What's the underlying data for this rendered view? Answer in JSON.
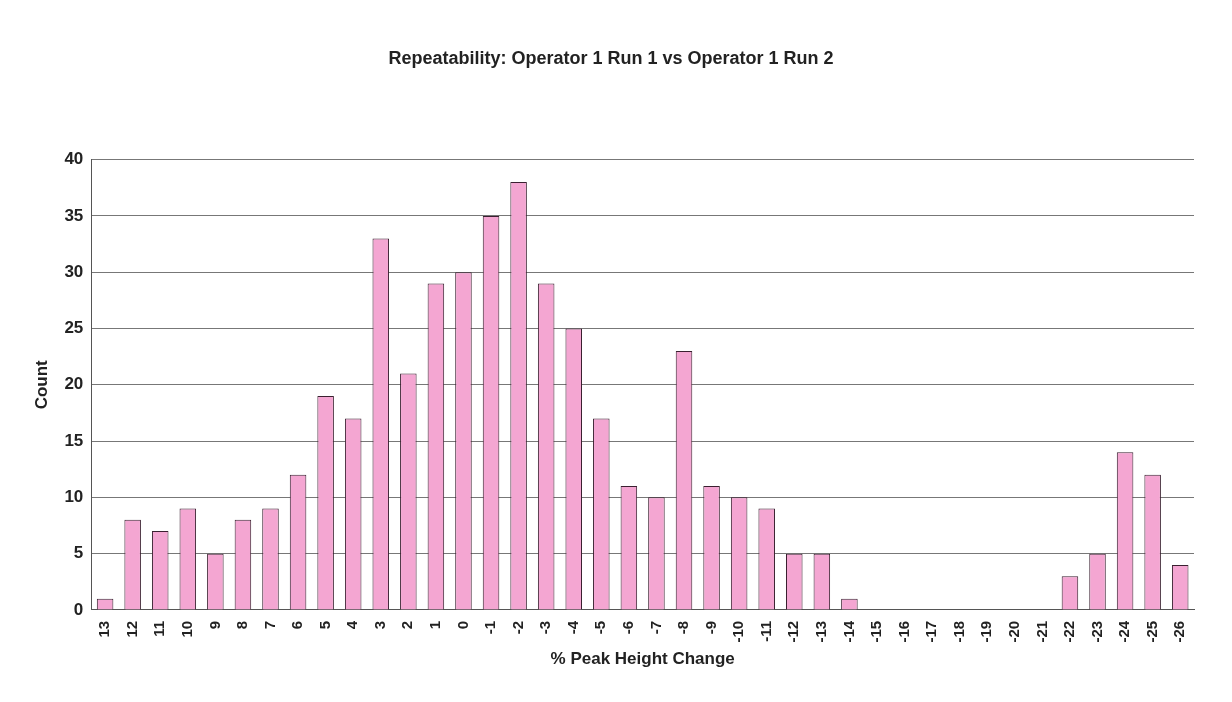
{
  "chart_data": {
    "type": "bar",
    "title": "Repeatability: Operator 1 Run 1 vs Operator 1 Run 2",
    "xlabel": "% Peak Height Change",
    "ylabel": "Count",
    "categories": [
      "13",
      "12",
      "11",
      "10",
      "9",
      "8",
      "7",
      "6",
      "5",
      "4",
      "3",
      "2",
      "1",
      "0",
      "-1",
      "-2",
      "-3",
      "-4",
      "-5",
      "-6",
      "-7",
      "-8",
      "-9",
      "-10",
      "-11",
      "-12",
      "-13",
      "-14",
      "-15",
      "-16",
      "-17",
      "-18",
      "-19",
      "-20",
      "-21",
      "-22",
      "-23",
      "-24",
      "-25",
      "-26"
    ],
    "values": [
      1,
      8,
      7,
      9,
      5,
      8,
      9,
      12,
      19,
      17,
      33,
      21,
      29,
      30,
      35,
      38,
      29,
      25,
      17,
      11,
      10,
      23,
      11,
      10,
      9,
      5,
      5,
      1,
      0,
      0,
      0,
      0,
      0,
      0,
      0,
      3,
      5,
      14,
      12,
      4
    ],
    "color": "#f4a6d2",
    "ylim": [
      0,
      40
    ],
    "yticks": [
      0,
      5,
      10,
      15,
      20,
      25,
      30,
      35,
      40
    ],
    "grid": "y",
    "legend": false
  }
}
